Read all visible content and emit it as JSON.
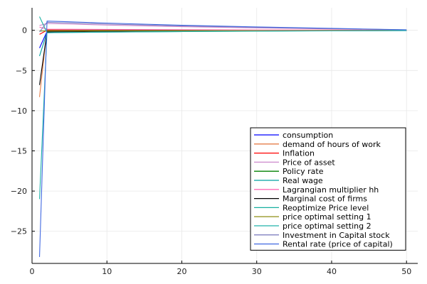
{
  "chart_data": {
    "type": "line",
    "title": "",
    "xlabel": "",
    "ylabel": "",
    "xlim": [
      0,
      51.5
    ],
    "ylim": [
      -29,
      2.8
    ],
    "x_ticks": [
      0,
      10,
      20,
      30,
      40,
      50
    ],
    "y_ticks": [
      0,
      -5,
      -10,
      -15,
      -20,
      -25
    ],
    "x_tick_labels": [
      "0",
      "10",
      "20",
      "30",
      "40",
      "50"
    ],
    "y_tick_labels": [
      "0",
      "−5",
      "−10",
      "−15",
      "−20",
      "−25"
    ],
    "grid": true,
    "legend_position": "bottom-right",
    "x": [
      1,
      2,
      5,
      10,
      20,
      30,
      40,
      50
    ],
    "series": [
      {
        "name": "consumption",
        "color": "#0000ff",
        "values": [
          -2.2,
          -0.15,
          -0.12,
          -0.1,
          -0.07,
          -0.05,
          -0.03,
          -0.02
        ]
      },
      {
        "name": "demand of hours of work",
        "color": "#e57e49",
        "values": [
          -8.3,
          0.05,
          0.04,
          0.03,
          0.02,
          0.01,
          0.01,
          0.0
        ]
      },
      {
        "name": "Inflation",
        "color": "#ff0000",
        "values": [
          -0.5,
          0.02,
          0.02,
          0.01,
          0.01,
          0.0,
          0.0,
          0.0
        ]
      },
      {
        "name": "Price of asset",
        "color": "#cc88cc",
        "values": [
          0.6,
          0.85,
          0.78,
          0.65,
          0.45,
          0.3,
          0.17,
          0.05
        ]
      },
      {
        "name": "Policy rate",
        "color": "#008000",
        "values": [
          -0.1,
          -0.05,
          -0.04,
          -0.03,
          -0.02,
          -0.01,
          -0.01,
          0.0
        ]
      },
      {
        "name": "Real wage",
        "color": "#00a0a0",
        "values": [
          -3.2,
          -0.25,
          -0.22,
          -0.18,
          -0.12,
          -0.08,
          -0.05,
          -0.02
        ]
      },
      {
        "name": "Lagrangian multiplier hh",
        "color": "#ff69b4",
        "values": [
          0.4,
          0.15,
          0.13,
          0.11,
          0.08,
          0.05,
          0.03,
          0.01
        ]
      },
      {
        "name": "Marginal cost of firms",
        "color": "#000000",
        "values": [
          -6.8,
          -0.2,
          -0.17,
          -0.14,
          -0.1,
          -0.06,
          -0.04,
          -0.02
        ]
      },
      {
        "name": "Reoptimize Price level",
        "color": "#17b0a0",
        "values": [
          1.7,
          -0.3,
          -0.27,
          -0.22,
          -0.15,
          -0.1,
          -0.06,
          -0.03
        ]
      },
      {
        "name": "price optimal setting 1",
        "color": "#9a9a2a",
        "values": [
          -0.05,
          -0.1,
          -0.09,
          -0.07,
          -0.05,
          -0.03,
          -0.02,
          -0.01
        ]
      },
      {
        "name": "price optimal setting 2",
        "color": "#20b2aa",
        "values": [
          -21.0,
          -0.3,
          -0.27,
          -0.22,
          -0.16,
          -0.11,
          -0.07,
          -0.03
        ]
      },
      {
        "name": "Investment in Capital stock",
        "color": "#8080c0",
        "values": [
          -0.2,
          1.0,
          0.92,
          0.78,
          0.55,
          0.37,
          0.21,
          0.06
        ]
      },
      {
        "name": "Rental rate (price of capital)",
        "color": "#4169e1",
        "values": [
          -28.2,
          1.15,
          1.06,
          0.9,
          0.63,
          0.42,
          0.24,
          0.07
        ]
      }
    ]
  }
}
